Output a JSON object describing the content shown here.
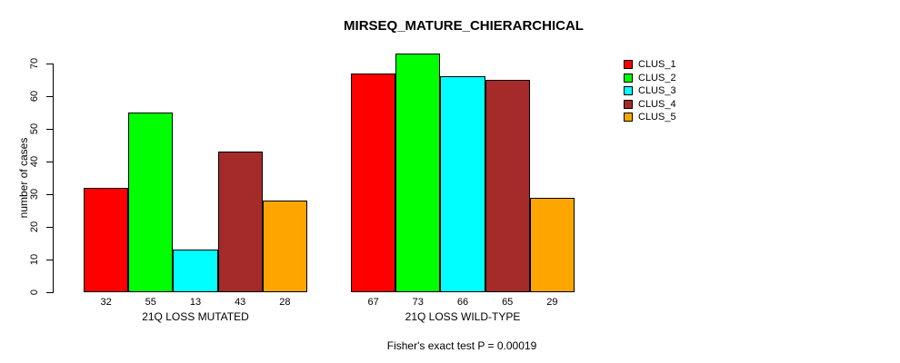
{
  "chart_data": {
    "type": "bar",
    "title": "MIRSEQ_MATURE_CHIERARCHICAL",
    "ylabel": "number of cases",
    "xlabel": "",
    "ylim": [
      0,
      70
    ],
    "yticks": [
      0,
      10,
      20,
      30,
      40,
      50,
      60,
      70
    ],
    "grid": false,
    "legend_position": "right",
    "categories": [
      "21Q LOSS MUTATED",
      "21Q LOSS WILD-TYPE"
    ],
    "series": [
      {
        "name": "CLUS_1",
        "color": "#FF0000",
        "values": [
          32,
          67
        ]
      },
      {
        "name": "CLUS_2",
        "color": "#00FF00",
        "values": [
          55,
          73
        ]
      },
      {
        "name": "CLUS_3",
        "color": "#00FFFF",
        "values": [
          13,
          66
        ]
      },
      {
        "name": "CLUS_4",
        "color": "#A52A2A",
        "values": [
          43,
          65
        ]
      },
      {
        "name": "CLUS_5",
        "color": "#FFA500",
        "values": [
          28,
          29
        ]
      }
    ],
    "bar_value_labels": [
      [
        32,
        55,
        13,
        43,
        28
      ],
      [
        67,
        73,
        66,
        65,
        29
      ]
    ],
    "annotation": "Fisher's exact test P = 0.00019"
  }
}
